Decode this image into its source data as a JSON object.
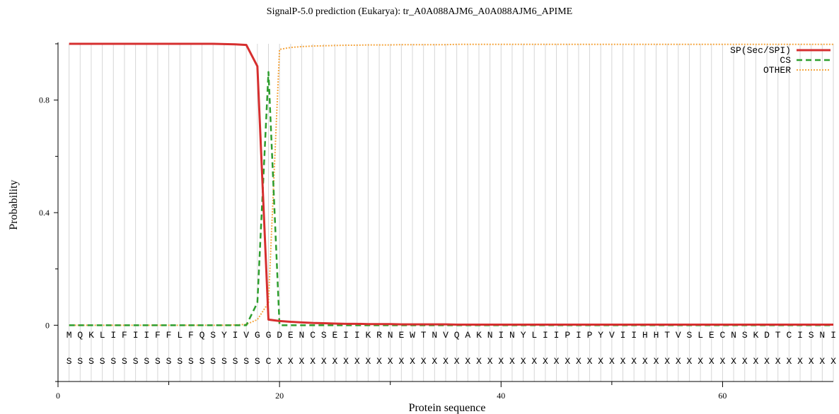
{
  "chart_data": {
    "type": "line",
    "title": "SignalP-5.0 prediction (Eukarya):  tr_A0A088AJM6_A0A088AJM6_APIME",
    "xlabel": "Protein sequence",
    "ylabel": "Probability",
    "xlim": [
      0,
      70
    ],
    "ylim": [
      -0.2,
      1.0
    ],
    "x_ticks": [
      0,
      20,
      40,
      60
    ],
    "y_ticks": [
      0,
      0.4,
      0.8
    ],
    "grid": "vertical-per-residue",
    "legend_position": "top-right",
    "sequence": [
      "M",
      "Q",
      "K",
      "L",
      "I",
      "F",
      "I",
      "I",
      "F",
      "F",
      "L",
      "F",
      "Q",
      "S",
      "Y",
      "I",
      "V",
      "G",
      "G",
      "D",
      "E",
      "N",
      "C",
      "S",
      "E",
      "I",
      "I",
      "K",
      "R",
      "N",
      "E",
      "W",
      "T",
      "N",
      "V",
      "Q",
      "A",
      "K",
      "N",
      "I",
      "N",
      "Y",
      "L",
      "I",
      "I",
      "P",
      "I",
      "P",
      "Y",
      "V",
      "I",
      "I",
      "H",
      "H",
      "T",
      "V",
      "S",
      "L",
      "E",
      "C",
      "N",
      "S",
      "K",
      "D",
      "T",
      "C",
      "I",
      "S",
      "N",
      "I"
    ],
    "labels": [
      "S",
      "S",
      "S",
      "S",
      "S",
      "S",
      "S",
      "S",
      "S",
      "S",
      "S",
      "S",
      "S",
      "S",
      "S",
      "S",
      "S",
      "S",
      "C",
      "X",
      "X",
      "X",
      "X",
      "X",
      "X",
      "X",
      "X",
      "X",
      "X",
      "X",
      "X",
      "X",
      "X",
      "X",
      "X",
      "X",
      "X",
      "X",
      "X",
      "X",
      "X",
      "X",
      "X",
      "X",
      "X",
      "X",
      "X",
      "X",
      "X",
      "X",
      "X",
      "X",
      "X",
      "X",
      "X",
      "X",
      "X",
      "X",
      "X",
      "X",
      "X",
      "X",
      "X",
      "X",
      "X",
      "X",
      "X",
      "X",
      "X",
      "X"
    ],
    "series": [
      {
        "name": "SP(Sec/SPI)",
        "color": "#d62f2f",
        "style": "solid",
        "values": [
          1.0,
          1.0,
          1.0,
          1.0,
          1.0,
          1.0,
          1.0,
          1.0,
          1.0,
          1.0,
          1.0,
          1.0,
          1.0,
          1.0,
          0.999,
          0.998,
          0.996,
          0.92,
          0.02,
          0.015,
          0.012,
          0.01,
          0.008,
          0.007,
          0.006,
          0.005,
          0.005,
          0.004,
          0.004,
          0.004,
          0.003,
          0.003,
          0.003,
          0.003,
          0.003,
          0.002,
          0.002,
          0.002,
          0.002,
          0.002,
          0.002,
          0.002,
          0.002,
          0.002,
          0.002,
          0.002,
          0.002,
          0.002,
          0.002,
          0.002,
          0.002,
          0.002,
          0.002,
          0.002,
          0.002,
          0.002,
          0.002,
          0.002,
          0.002,
          0.002,
          0.002,
          0.002,
          0.002,
          0.002,
          0.002,
          0.002,
          0.002,
          0.002,
          0.002,
          0.002
        ]
      },
      {
        "name": "CS",
        "color": "#2e9e2e",
        "style": "dashed",
        "values": [
          0.0,
          0.0,
          0.0,
          0.0,
          0.0,
          0.0,
          0.0,
          0.0,
          0.0,
          0.0,
          0.0,
          0.0,
          0.0,
          0.0,
          0.0,
          0.0,
          0.0,
          0.08,
          0.9,
          0.0,
          0.0,
          0.0,
          0.0,
          0.0,
          0.0,
          0.0,
          0.0,
          0.0,
          0.0,
          0.0,
          0.0,
          0.0,
          0.0,
          0.0,
          0.0,
          0.0,
          0.0,
          0.0,
          0.0,
          0.0,
          0.0,
          0.0,
          0.0,
          0.0,
          0.0,
          0.0,
          0.0,
          0.0,
          0.0,
          0.0,
          0.0,
          0.0,
          0.0,
          0.0,
          0.0,
          0.0,
          0.0,
          0.0,
          0.0,
          0.0,
          0.0,
          0.0,
          0.0,
          0.0,
          0.0,
          0.0,
          0.0,
          0.0,
          0.0,
          0.0
        ]
      },
      {
        "name": "OTHER",
        "color": "#f5a742",
        "style": "dotted",
        "values": [
          0.0,
          0.0,
          0.0,
          0.0,
          0.0,
          0.0,
          0.0,
          0.0,
          0.0,
          0.0,
          0.0,
          0.0,
          0.0,
          0.0,
          0.0,
          0.001,
          0.003,
          0.02,
          0.08,
          0.98,
          0.987,
          0.99,
          0.992,
          0.993,
          0.994,
          0.995,
          0.995,
          0.996,
          0.996,
          0.996,
          0.997,
          0.997,
          0.997,
          0.997,
          0.997,
          0.998,
          0.998,
          0.998,
          0.998,
          0.998,
          0.998,
          0.998,
          0.998,
          0.998,
          0.998,
          0.998,
          0.998,
          0.998,
          0.998,
          0.998,
          0.998,
          0.998,
          0.998,
          0.998,
          0.998,
          0.998,
          0.998,
          0.998,
          0.998,
          0.998,
          0.998,
          0.998,
          0.998,
          0.998,
          0.998,
          0.998,
          0.998,
          0.998,
          0.998,
          0.998
        ]
      }
    ]
  }
}
